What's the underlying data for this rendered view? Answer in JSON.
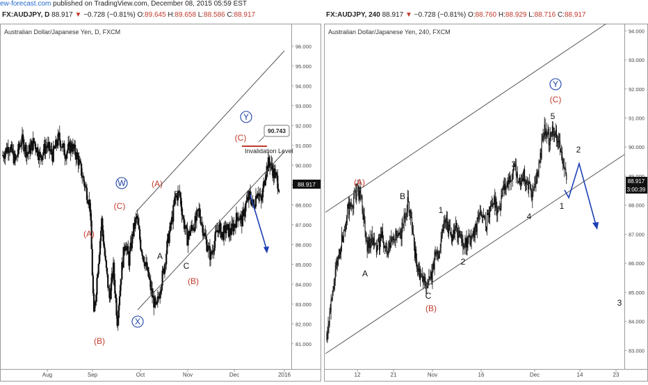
{
  "attribution": {
    "site": "ew-forecast.com",
    "text": "published on TradingView.com, December 08, 2015 05:59 EST"
  },
  "left": {
    "header": {
      "symbol": "FX:AUDJPY, D",
      "price": "88.917",
      "change": "−0.728 (−0.81%)",
      "o": "89.645",
      "h": "89.658",
      "l": "88.586",
      "c": "88.917"
    },
    "title": "Australian Dollar/Japanese Yen, D, FXCM",
    "price_label": "88.917",
    "invalidation": {
      "value": "90.743",
      "label": "Invalidation Level"
    }
  },
  "right": {
    "header": {
      "symbol": "FX:AUDJPY, 240",
      "price": "88.917",
      "change": "−0.728 (−0.81%)",
      "o": "88.760",
      "h": "88.929",
      "l": "88.716",
      "c": "88.917"
    },
    "title": "Australian Dollar/Japanese Yen, 240, FXCM",
    "price_label": "88.917",
    "timer_label": "3:00:39"
  },
  "chart_data": [
    {
      "type": "candlestick",
      "title": "Australian Dollar/Japanese Yen, D, FXCM",
      "yaxis": {
        "ticks": [
          "81.000",
          "82.000",
          "83.000",
          "84.000",
          "85.000",
          "86.000",
          "87.000",
          "88.000",
          "89.000",
          "90.000",
          "91.000",
          "92.000",
          "93.000",
          "94.000",
          "95.000",
          "96.000"
        ],
        "ylim": [
          80.5,
          96.5
        ]
      },
      "xaxis": {
        "ticks": [
          "Aug",
          "Sep",
          "Oct",
          "Nov",
          "Dec",
          "2016"
        ]
      },
      "price_path": [
        [
          0,
          90.5
        ],
        [
          8,
          91.0
        ],
        [
          16,
          90.2
        ],
        [
          24,
          91.3
        ],
        [
          32,
          90.6
        ],
        [
          40,
          91.2
        ],
        [
          48,
          90.4
        ],
        [
          56,
          91.0
        ],
        [
          64,
          90.5
        ],
        [
          72,
          91.4
        ],
        [
          80,
          90.6
        ],
        [
          88,
          91.0
        ],
        [
          96,
          90.4
        ],
        [
          104,
          89.2
        ],
        [
          112,
          88.0
        ],
        [
          117,
          82.3
        ],
        [
          122,
          84.8
        ],
        [
          127,
          87.2
        ],
        [
          132,
          85.0
        ],
        [
          137,
          83.3
        ],
        [
          142,
          84.8
        ],
        [
          147,
          82.2
        ],
        [
          152,
          84.5
        ],
        [
          157,
          86.2
        ],
        [
          162,
          85.2
        ],
        [
          167,
          86.6
        ],
        [
          172,
          87.4
        ],
        [
          177,
          86.0
        ],
        [
          182,
          85.2
        ],
        [
          187,
          84.4
        ],
        [
          192,
          83.4
        ],
        [
          197,
          82.7
        ],
        [
          202,
          83.8
        ],
        [
          207,
          84.8
        ],
        [
          212,
          86.2
        ],
        [
          217,
          87.2
        ],
        [
          222,
          88.4
        ],
        [
          227,
          88.6
        ],
        [
          232,
          87.2
        ],
        [
          237,
          86.3
        ],
        [
          242,
          86.8
        ],
        [
          247,
          87.1
        ],
        [
          252,
          87.7
        ],
        [
          257,
          86.8
        ],
        [
          262,
          86.0
        ],
        [
          267,
          85.4
        ],
        [
          272,
          86.2
        ],
        [
          277,
          86.9
        ],
        [
          282,
          86.5
        ],
        [
          287,
          86.8
        ],
        [
          292,
          86.6
        ],
        [
          297,
          87.0
        ],
        [
          302,
          87.5
        ],
        [
          307,
          87.2
        ],
        [
          312,
          88.0
        ],
        [
          317,
          88.5
        ],
        [
          322,
          87.9
        ],
        [
          327,
          88.8
        ],
        [
          332,
          88.1
        ],
        [
          337,
          89.6
        ],
        [
          342,
          90.2
        ],
        [
          347,
          89.7
        ],
        [
          352,
          89.3
        ],
        [
          355,
          88.9
        ]
      ],
      "annotations": [
        {
          "text": "(A)",
          "color": "#c0392b"
        },
        {
          "text": "(B)",
          "color": "#c0392b"
        },
        {
          "text": "(C)",
          "color": "#c0392b"
        },
        {
          "text": "W",
          "color": "#1a3fa6",
          "circled": true
        },
        {
          "text": "X",
          "color": "#1a3fa6",
          "circled": true
        },
        {
          "text": "Y",
          "color": "#1a3fa6",
          "circled": true
        },
        {
          "text": "(A)",
          "color": "#c0392b"
        },
        {
          "text": "A",
          "color": "#111111"
        },
        {
          "text": "B",
          "color": "#111111"
        },
        {
          "text": "C",
          "color": "#111111"
        },
        {
          "text": "(B)",
          "color": "#c0392b"
        },
        {
          "text": "(C)",
          "color": "#c0392b"
        }
      ]
    },
    {
      "type": "candlestick",
      "title": "Australian Dollar/Japanese Yen, 240, FXCM",
      "yaxis": {
        "ticks": [
          "83.000",
          "84.000",
          "85.000",
          "86.000",
          "87.000",
          "88.000",
          "89.000",
          "90.000",
          "91.000",
          "92.000",
          "93.000",
          "94.000"
        ],
        "ylim": [
          82.7,
          94.15
        ]
      },
      "xaxis": {
        "ticks": [
          "12",
          "21",
          "Nov",
          "16",
          "Dec",
          "14",
          "23"
        ]
      },
      "price_path": [
        [
          0,
          83.6
        ],
        [
          6,
          84.5
        ],
        [
          12,
          85.6
        ],
        [
          18,
          86.4
        ],
        [
          24,
          87.2
        ],
        [
          30,
          87.8
        ],
        [
          36,
          88.0
        ],
        [
          42,
          88.5
        ],
        [
          48,
          88.4
        ],
        [
          52,
          87.5
        ],
        [
          56,
          86.6
        ],
        [
          62,
          86.8
        ],
        [
          70,
          86.5
        ],
        [
          78,
          86.9
        ],
        [
          86,
          86.3
        ],
        [
          94,
          87.0
        ],
        [
          102,
          86.8
        ],
        [
          108,
          87.4
        ],
        [
          114,
          88.1
        ],
        [
          118,
          87.8
        ],
        [
          124,
          86.4
        ],
        [
          130,
          85.6
        ],
        [
          136,
          85.4
        ],
        [
          142,
          85.3
        ],
        [
          148,
          85.5
        ],
        [
          152,
          86.2
        ],
        [
          158,
          86.4
        ],
        [
          164,
          87.3
        ],
        [
          168,
          87.6
        ],
        [
          174,
          86.9
        ],
        [
          182,
          87.2
        ],
        [
          190,
          86.8
        ],
        [
          198,
          86.6
        ],
        [
          206,
          87.0
        ],
        [
          212,
          87.4
        ],
        [
          218,
          87.8
        ],
        [
          224,
          87.3
        ],
        [
          230,
          87.9
        ],
        [
          236,
          88.2
        ],
        [
          242,
          87.8
        ],
        [
          248,
          88.5
        ],
        [
          254,
          88.8
        ],
        [
          260,
          89.0
        ],
        [
          266,
          89.2
        ],
        [
          272,
          88.8
        ],
        [
          278,
          89.0
        ],
        [
          284,
          88.6
        ],
        [
          290,
          88.3
        ],
        [
          296,
          88.9
        ],
        [
          302,
          89.8
        ],
        [
          306,
          90.5
        ],
        [
          310,
          90.6
        ],
        [
          314,
          90.2
        ],
        [
          318,
          90.7
        ],
        [
          322,
          90.5
        ],
        [
          326,
          90.4
        ],
        [
          330,
          89.8
        ],
        [
          334,
          89.2
        ],
        [
          338,
          88.9
        ]
      ],
      "annotations": [
        {
          "text": "(A)",
          "color": "#c0392b"
        },
        {
          "text": "B",
          "color": "#111111"
        },
        {
          "text": "A",
          "color": "#111111"
        },
        {
          "text": "C",
          "color": "#111111"
        },
        {
          "text": "(B)",
          "color": "#c0392b"
        },
        {
          "text": "1",
          "color": "#111111"
        },
        {
          "text": "2",
          "color": "#111111"
        },
        {
          "text": "3",
          "color": "#111111"
        },
        {
          "text": "4",
          "color": "#111111"
        },
        {
          "text": "5",
          "color": "#111111"
        },
        {
          "text": "(C)",
          "color": "#c0392b"
        },
        {
          "text": "Y",
          "color": "#1a3fa6",
          "circled": true
        },
        {
          "text": "1",
          "color": "#111111"
        },
        {
          "text": "2",
          "color": "#111111"
        },
        {
          "text": "3",
          "color": "#111111"
        }
      ]
    }
  ]
}
